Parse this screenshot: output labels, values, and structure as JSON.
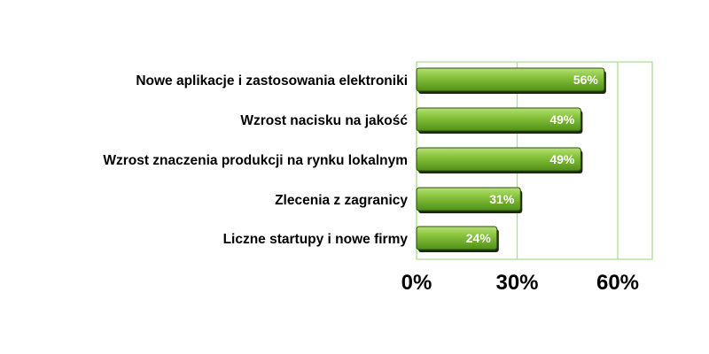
{
  "chart_data": {
    "type": "bar",
    "orientation": "horizontal",
    "categories": [
      "Nowe aplikacje i zastosowania elektroniki",
      "Wzrost nacisku na jakość",
      "Wzrost znaczenia produkcji na rynku lokalnym",
      "Zlecenia z zagranicy",
      "Liczne startupy i nowe firmy"
    ],
    "values": [
      56,
      49,
      49,
      31,
      24
    ],
    "data_labels": [
      "56%",
      "49%",
      "49%",
      "31%",
      "24%"
    ],
    "x_ticks": [
      "0%",
      "30%",
      "60%"
    ],
    "x_tick_values": [
      0,
      30,
      60
    ],
    "xlim": [
      0,
      70
    ],
    "grid": true,
    "legend": false,
    "colors": {
      "bar_light": "#8cc63f",
      "bar_dark": "#3f7d12",
      "bar_outline": "#2e4d12",
      "shadow": "#1c2a0d",
      "grid": "#a6dd8f",
      "frame": "#a6dd8f",
      "label_text": "#000000",
      "value_text": "#ffffff"
    }
  }
}
